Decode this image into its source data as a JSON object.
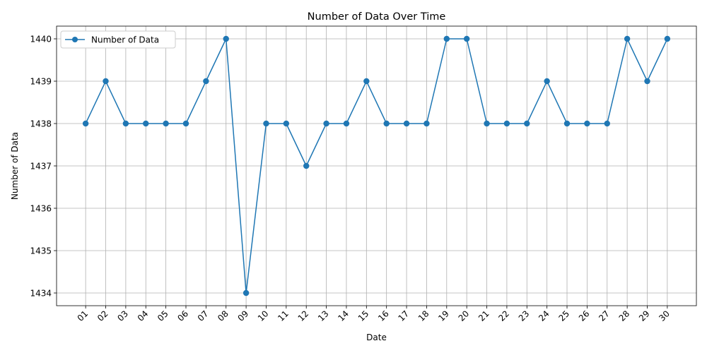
{
  "chart_data": {
    "type": "line",
    "title": "Number of Data Over Time",
    "xlabel": "Date",
    "ylabel": "Number of Data",
    "categories": [
      "01",
      "02",
      "03",
      "04",
      "05",
      "06",
      "07",
      "08",
      "09",
      "10",
      "11",
      "12",
      "13",
      "14",
      "15",
      "16",
      "17",
      "18",
      "19",
      "20",
      "21",
      "22",
      "23",
      "24",
      "25",
      "26",
      "27",
      "28",
      "29",
      "30"
    ],
    "series": [
      {
        "name": "Number of Data",
        "values": [
          1438,
          1439,
          1438,
          1438,
          1438,
          1438,
          1439,
          1440,
          1434,
          1438,
          1438,
          1437,
          1438,
          1438,
          1439,
          1438,
          1438,
          1438,
          1440,
          1440,
          1438,
          1438,
          1438,
          1439,
          1438,
          1438,
          1438,
          1440,
          1439,
          1440
        ],
        "color": "#1f77b4",
        "marker": "circle"
      }
    ],
    "yticks": [
      1434,
      1435,
      1436,
      1437,
      1438,
      1439,
      1440
    ],
    "ylim": [
      1433.7,
      1440.3
    ],
    "grid": true,
    "legend_position": "top-left"
  }
}
